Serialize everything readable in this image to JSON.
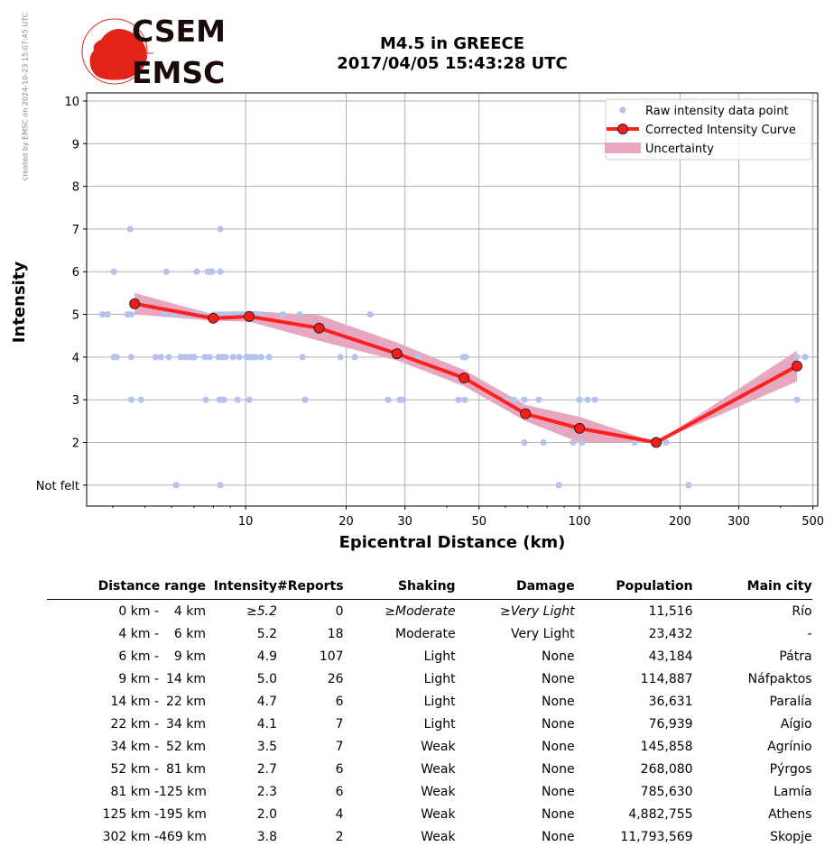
{
  "watermark": "created by EMSC on 2024-10-23 15:07:45 UTC",
  "logo": {
    "line1": "CSEM",
    "line2": "EMSC",
    "color": "#e2231a"
  },
  "header": {
    "title": "M4.5 in GREECE",
    "subtitle": "2017/04/05 15:43:28 UTC"
  },
  "chart_data": {
    "type": "scatter+line",
    "xlabel": "Epicentral Distance (km)",
    "ylabel": "Intensity",
    "x_scale": "log",
    "xlim": [
      3.34,
      517
    ],
    "ylim": [
      0.51,
      10.19
    ],
    "x_ticks": [
      10,
      20,
      30,
      50,
      100,
      200,
      300,
      500
    ],
    "x_tick_labels": [
      "10",
      "20",
      "30",
      "50",
      "100",
      "200",
      "300",
      "500"
    ],
    "y_ticks": [
      1,
      2,
      3,
      4,
      5,
      6,
      7,
      8,
      9,
      10
    ],
    "y_tick_labels": [
      "Not felt",
      "2",
      "3",
      "4",
      "5",
      "6",
      "7",
      "8",
      "9",
      "10"
    ],
    "grid": true,
    "legend_position": "top-right",
    "legend": [
      "Raw intensity data point",
      "Corrected Intensity Curve",
      "Uncertainty"
    ],
    "colors": {
      "raw": "#b4c3ec",
      "curve": "#ff2020",
      "marker": "#ff1a1a",
      "uncertainty": "#e8a7c1"
    },
    "raw_points": [
      {
        "y": 7,
        "x": [
          4.51,
          8.4
        ]
      },
      {
        "y": 6,
        "x": [
          4.03,
          5.78,
          7.14,
          7.7,
          7.85,
          7.94,
          8.4
        ]
      },
      {
        "y": 5,
        "x": [
          3.72,
          3.86,
          4.43,
          4.54,
          5.75,
          6.12,
          6.59,
          6.8,
          7.02,
          7.14,
          7.37,
          8.04,
          8.35,
          8.61,
          8.83,
          9.11,
          9.28,
          9.46,
          9.75,
          10.06,
          10.51,
          10.71,
          11.19,
          12.91,
          14.52,
          23.6
        ]
      },
      {
        "y": 4,
        "x": [
          4.03,
          4.11,
          4.54,
          5.37,
          5.57,
          5.89,
          6.39,
          6.59,
          6.8,
          6.93,
          7.02,
          7.56,
          7.8,
          8.3,
          8.51,
          8.72,
          9.17,
          9.57,
          10.06,
          10.25,
          10.45,
          10.71,
          11.12,
          11.75,
          14.8,
          19.22,
          21.23,
          32.8,
          44.8,
          45.6,
          448,
          474
        ]
      },
      {
        "y": 3,
        "x": [
          4.54,
          4.86,
          7.6,
          8.35,
          8.51,
          8.61,
          9.46,
          10.25,
          15.07,
          26.7,
          28.97,
          29.5,
          43.4,
          45.3,
          60.0,
          63.5,
          68.4,
          75.5,
          100,
          105.7,
          111.1,
          448
        ]
      },
      {
        "y": 2,
        "x": [
          68.4,
          78.0,
          95.7,
          101.9,
          146.2,
          181.6
        ]
      },
      {
        "y": 1,
        "x": [
          6.19,
          8.4,
          86.7,
          212.2
        ]
      }
    ],
    "curve": {
      "x": [
        4.65,
        8.0,
        10.25,
        16.6,
        28.4,
        45.1,
        68.9,
        100,
        169.7,
        448
      ],
      "y": [
        5.25,
        4.91,
        4.95,
        4.68,
        4.08,
        3.51,
        2.67,
        2.33,
        2.0,
        3.79
      ]
    },
    "uncertainty": {
      "x": [
        4.65,
        8.0,
        10.25,
        16.6,
        28.4,
        45.1,
        68.9,
        100,
        169.7,
        448
      ],
      "upper": [
        5.5,
        5.0,
        5.08,
        4.98,
        4.34,
        3.7,
        2.88,
        2.6,
        2.0,
        4.15
      ],
      "lower": [
        5.0,
        4.85,
        4.83,
        4.38,
        3.92,
        3.32,
        2.5,
        2.0,
        2.0,
        3.43
      ]
    }
  },
  "table": {
    "headers": [
      "Distance range",
      "Intensity",
      "#Reports",
      "Shaking",
      "Damage",
      "Population",
      "Main city"
    ],
    "rows": [
      {
        "from": "0 km -",
        "to": "4 km",
        "intensity": "≥5.2",
        "reports": "0",
        "shaking": "≥Moderate",
        "damage": "≥Very Light",
        "population": "11,516",
        "city": "Río",
        "italic": true
      },
      {
        "from": "4 km -",
        "to": "6 km",
        "intensity": "5.2",
        "reports": "18",
        "shaking": "Moderate",
        "damage": "Very Light",
        "population": "23,432",
        "city": "-"
      },
      {
        "from": "6 km -",
        "to": "9 km",
        "intensity": "4.9",
        "reports": "107",
        "shaking": "Light",
        "damage": "None",
        "population": "43,184",
        "city": "Pátra"
      },
      {
        "from": "9 km -",
        "to": "14 km",
        "intensity": "5.0",
        "reports": "26",
        "shaking": "Light",
        "damage": "None",
        "population": "114,887",
        "city": "Náfpaktos"
      },
      {
        "from": "14 km -",
        "to": "22 km",
        "intensity": "4.7",
        "reports": "6",
        "shaking": "Light",
        "damage": "None",
        "population": "36,631",
        "city": "Paralía"
      },
      {
        "from": "22 km -",
        "to": "34 km",
        "intensity": "4.1",
        "reports": "7",
        "shaking": "Light",
        "damage": "None",
        "population": "76,939",
        "city": "Aígio"
      },
      {
        "from": "34 km -",
        "to": "52 km",
        "intensity": "3.5",
        "reports": "7",
        "shaking": "Weak",
        "damage": "None",
        "population": "145,858",
        "city": "Agrínio"
      },
      {
        "from": "52 km -",
        "to": "81 km",
        "intensity": "2.7",
        "reports": "6",
        "shaking": "Weak",
        "damage": "None",
        "population": "268,080",
        "city": "Pýrgos"
      },
      {
        "from": "81 km -",
        "to": "125 km",
        "intensity": "2.3",
        "reports": "6",
        "shaking": "Weak",
        "damage": "None",
        "population": "785,630",
        "city": "Lamía"
      },
      {
        "from": "125 km -",
        "to": "195 km",
        "intensity": "2.0",
        "reports": "4",
        "shaking": "Weak",
        "damage": "None",
        "population": "4,882,755",
        "city": "Athens"
      },
      {
        "from": "302 km -",
        "to": "469 km",
        "intensity": "3.8",
        "reports": "2",
        "shaking": "Weak",
        "damage": "None",
        "population": "11,793,569",
        "city": "Skopje"
      }
    ]
  }
}
